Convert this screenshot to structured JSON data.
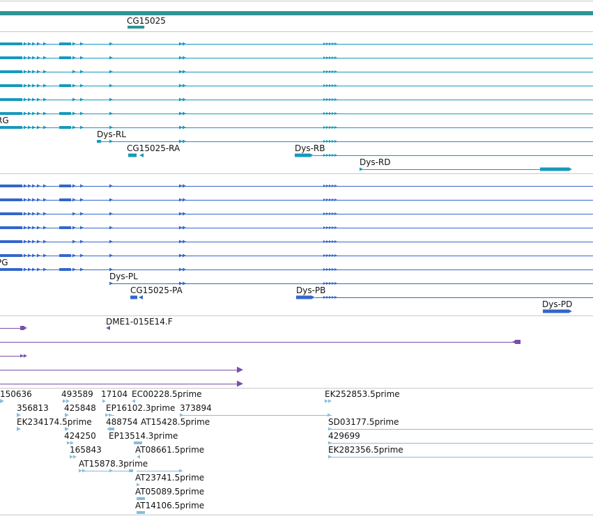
{
  "colors": {
    "gene_track": "#2e9494",
    "transcript": "#1798bd",
    "protein": "#3366cc",
    "clone": "#7a4fa8",
    "est": "#86bcdc",
    "divider": "#c8c8c8"
  },
  "gene_track": {
    "gene_label": "CG15025"
  },
  "transcript_track": {
    "row_label_partial": "RG",
    "labels": [
      "Dys-RL",
      "CG15025-RA",
      "Dys-RB",
      "Dys-RD"
    ]
  },
  "protein_track": {
    "row_label_partial": "PG",
    "labels": [
      "Dys-PL",
      "CG15025-PA",
      "Dys-PB",
      "Dys-PD"
    ]
  },
  "clone_track": {
    "labels": [
      "DME1-015E14.F"
    ]
  },
  "est_track": {
    "labels": [
      "150636",
      "493589",
      "17104",
      "EC00228.5prime",
      "356813",
      "425848",
      "EP16102.3prime",
      "373894",
      "EK234174.5prime",
      "488754",
      "AT15428.5prime",
      "424250",
      "EP13514.3prime",
      "165843",
      "AT08661.5prime",
      "AT15878.3prime",
      "AT23741.5prime",
      "AT05089.5prime",
      "AT14106.5prime",
      "EK252853.5prime",
      "SD03177.5prime",
      "429699",
      "EK282356.5prime"
    ]
  }
}
